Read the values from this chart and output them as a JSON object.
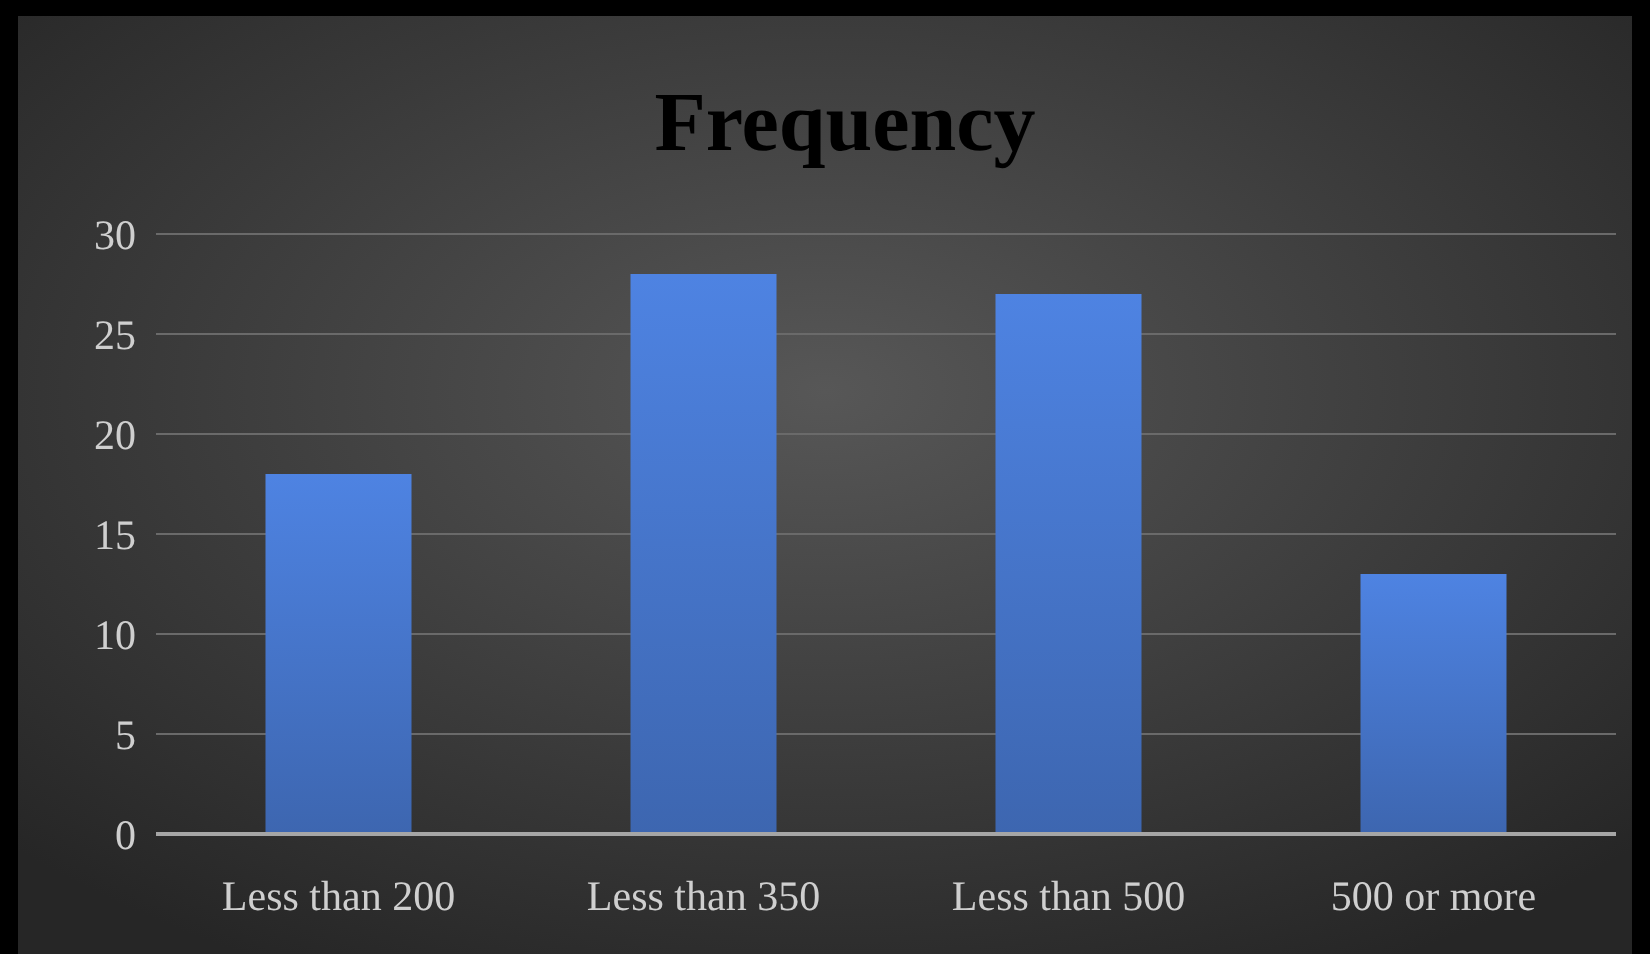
{
  "chart_data": {
    "type": "bar",
    "title": "Frequency",
    "categories": [
      "Less than 200",
      "Less than 350",
      "Less than 500",
      "500 or more"
    ],
    "values": [
      18,
      28,
      27,
      13
    ],
    "color": "#4472c4",
    "ylim": [
      0,
      30
    ],
    "yticks": [
      0,
      5,
      10,
      15,
      20,
      25,
      30
    ],
    "grid": "y"
  }
}
